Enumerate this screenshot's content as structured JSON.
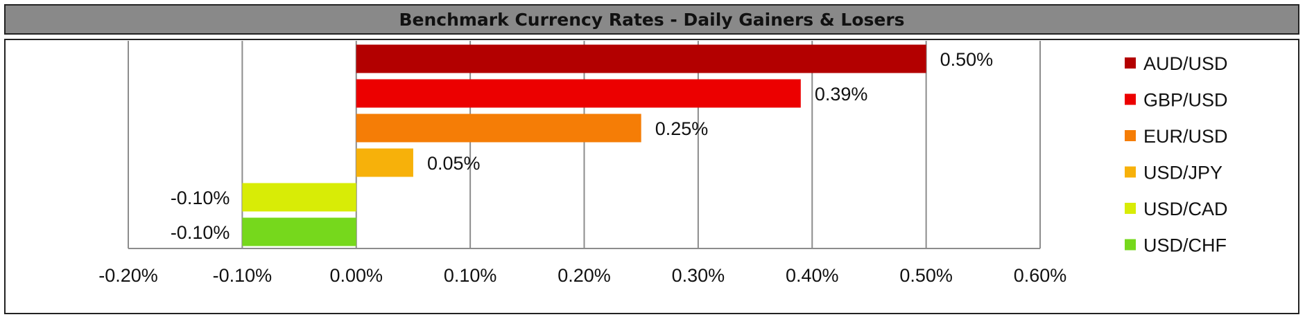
{
  "chart_data": {
    "type": "bar",
    "orientation": "horizontal",
    "title": "Benchmark Currency Rates - Daily Gainers & Losers",
    "categories": [
      "AUD/USD",
      "GBP/USD",
      "EUR/USD",
      "USD/JPY",
      "USD/CAD",
      "USD/CHF"
    ],
    "values": [
      0.5,
      0.39,
      0.25,
      0.05,
      -0.1,
      -0.1
    ],
    "value_unit": "%",
    "data_labels": [
      "0.50%",
      "0.39%",
      "0.25%",
      "0.05%",
      "-0.10%",
      "-0.10%"
    ],
    "colors": [
      "#b30000",
      "#ec0000",
      "#f57d06",
      "#f7b10a",
      "#d8ec06",
      "#76d81c"
    ],
    "xlim": [
      -0.2,
      0.6
    ],
    "x_ticks": [
      -0.2,
      -0.1,
      0.0,
      0.1,
      0.2,
      0.3,
      0.4,
      0.5,
      0.6
    ],
    "x_tick_labels": [
      "-0.20%",
      "-0.10%",
      "0.00%",
      "0.10%",
      "0.20%",
      "0.30%",
      "0.40%",
      "0.50%",
      "0.60%"
    ],
    "grid": "vertical",
    "legend_position": "right",
    "legend_entries": [
      "AUD/USD",
      "GBP/USD",
      "EUR/USD",
      "USD/JPY",
      "USD/CAD",
      "USD/CHF"
    ]
  }
}
